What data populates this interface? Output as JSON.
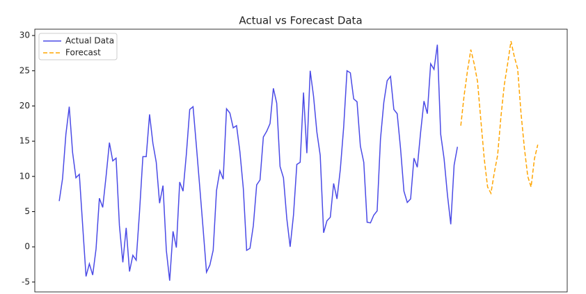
{
  "chart_data": {
    "type": "line",
    "title": "Actual vs Forecast Data",
    "xlim": [
      -7.3,
      151.8
    ],
    "ylim": [
      -6.4,
      30.9
    ],
    "yticks": [
      -5,
      0,
      5,
      10,
      15,
      20,
      25,
      30
    ],
    "legend": "upper left",
    "series": [
      {
        "name": "Actual Data",
        "color": "#4a4ae6",
        "style": "solid",
        "x": [
          0,
          1,
          2,
          3,
          4,
          5,
          6,
          7,
          8,
          9,
          10,
          11,
          12,
          13,
          14,
          15,
          16,
          17,
          18,
          19,
          20,
          21,
          22,
          23,
          24,
          25,
          26,
          27,
          28,
          29,
          30,
          31,
          32,
          33,
          34,
          35,
          36,
          37,
          38,
          39,
          40,
          41,
          42,
          43,
          44,
          45,
          46,
          47,
          48,
          49,
          50,
          51,
          52,
          53,
          54,
          55,
          56,
          57,
          58,
          59,
          60,
          61,
          62,
          63,
          64,
          65,
          66,
          67,
          68,
          69,
          70,
          71,
          72,
          73,
          74,
          75,
          76,
          77,
          78,
          79,
          80,
          81,
          82,
          83,
          84,
          85,
          86,
          87,
          88,
          89,
          90,
          91,
          92,
          93,
          94,
          95,
          96,
          97,
          98,
          99,
          100,
          101,
          102,
          103,
          104,
          105,
          106,
          107,
          108,
          109,
          110,
          111,
          112,
          113,
          114,
          115,
          116,
          117,
          118,
          119
        ],
        "values": [
          6.5,
          9.7,
          16,
          19.9,
          13.4,
          9.8,
          10.3,
          3,
          -4.2,
          -2.4,
          -4,
          -0.3,
          6.9,
          5.6,
          10,
          14.8,
          12.2,
          12.6,
          3,
          -2.2,
          2.7,
          -3.5,
          -1.2,
          -1.9,
          5,
          12.8,
          12.8,
          18.8,
          14.7,
          12,
          6.2,
          8.7,
          -0.5,
          -4.8,
          2.2,
          -0.1,
          9.2,
          7.9,
          13.2,
          19.5,
          19.9,
          14.3,
          8.5,
          2.5,
          -3.6,
          -2.6,
          -0.5,
          8,
          10.8,
          9.6,
          19.6,
          19,
          16.9,
          17.2,
          13.5,
          8.3,
          -0.5,
          -0.2,
          3,
          8.8,
          9.5,
          15.6,
          16.4,
          17.5,
          22.5,
          20.4,
          11.4,
          9.8,
          4,
          0,
          4.5,
          11.7,
          12,
          21.9,
          13.3,
          25,
          21.4,
          16.3,
          13,
          2,
          3.7,
          4.2,
          9,
          6.8,
          11,
          17,
          25,
          24.7,
          21,
          20.6,
          14.3,
          12,
          3.5,
          3.4,
          4.5,
          5.1,
          15.3,
          20.5,
          23.6,
          24.2,
          19.5,
          18.9,
          14,
          7.9,
          6.3,
          6.8,
          12.6,
          11.3,
          16.3,
          20.7,
          18.9,
          26,
          25.2,
          28.7,
          16,
          12.5,
          7.4,
          3.2,
          11.6,
          14.2
        ]
      },
      {
        "name": "Forecast",
        "color": "#ffa500",
        "style": "dashed",
        "x": [
          120,
          121,
          122,
          123,
          124,
          125,
          126,
          127,
          128,
          129,
          130,
          131,
          132,
          133,
          134,
          135,
          136,
          137,
          138,
          139,
          140,
          141,
          142,
          143
        ],
        "values": [
          17.2,
          21.5,
          25,
          28,
          26,
          23.5,
          18,
          12.5,
          8.5,
          7.6,
          10.5,
          13,
          18.5,
          23,
          26,
          29.2,
          27,
          25.3,
          19,
          14,
          10,
          8.5,
          12.5,
          14.5
        ]
      }
    ]
  }
}
